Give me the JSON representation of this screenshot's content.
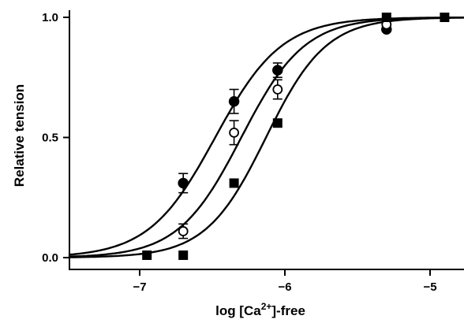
{
  "chart_data": {
    "type": "scatter",
    "xlabel": "log [Ca",
    "xlabel_sup": "2+",
    "xlabel_suffix": "]-free",
    "ylabel": "Relative tension",
    "xlim": [
      -7.5,
      -4.6
    ],
    "ylim": [
      0.0,
      1.0
    ],
    "x_ticks": [
      -7,
      -6,
      -5
    ],
    "x_tick_labels": [
      "−7",
      "−6",
      "−5"
    ],
    "y_ticks": [
      0.0,
      0.5,
      1.0
    ],
    "y_tick_labels": [
      "0.0",
      "0.5",
      "1.0"
    ],
    "grid": false,
    "series": [
      {
        "marker": "filled-circle",
        "color": "#000000",
        "points": [
          {
            "x": -6.7,
            "y": 0.31,
            "err": 0.04
          },
          {
            "x": -6.35,
            "y": 0.65,
            "err": 0.05
          },
          {
            "x": -6.05,
            "y": 0.78,
            "err": 0.03
          },
          {
            "x": -5.3,
            "y": 0.95,
            "err": 0.0
          }
        ],
        "fit": {
          "ec50_log": -6.48,
          "hill": 1.9
        }
      },
      {
        "marker": "open-circle",
        "color": "#000000",
        "points": [
          {
            "x": -6.7,
            "y": 0.11,
            "err": 0.03
          },
          {
            "x": -6.35,
            "y": 0.52,
            "err": 0.05
          },
          {
            "x": -6.05,
            "y": 0.7,
            "err": 0.04
          },
          {
            "x": -5.3,
            "y": 0.97,
            "err": 0.0
          }
        ],
        "fit": {
          "ec50_log": -6.3,
          "hill": 2.0
        }
      },
      {
        "marker": "filled-square",
        "color": "#000000",
        "points": [
          {
            "x": -6.95,
            "y": 0.01,
            "err": 0.0
          },
          {
            "x": -6.7,
            "y": 0.01,
            "err": 0.0
          },
          {
            "x": -6.35,
            "y": 0.31,
            "err": 0.0
          },
          {
            "x": -6.05,
            "y": 0.56,
            "err": 0.0
          },
          {
            "x": -5.3,
            "y": 1.0,
            "err": 0.0
          },
          {
            "x": -4.9,
            "y": 1.0,
            "err": 0.0
          }
        ],
        "fit": {
          "ec50_log": -6.13,
          "hill": 2.1
        }
      }
    ]
  }
}
